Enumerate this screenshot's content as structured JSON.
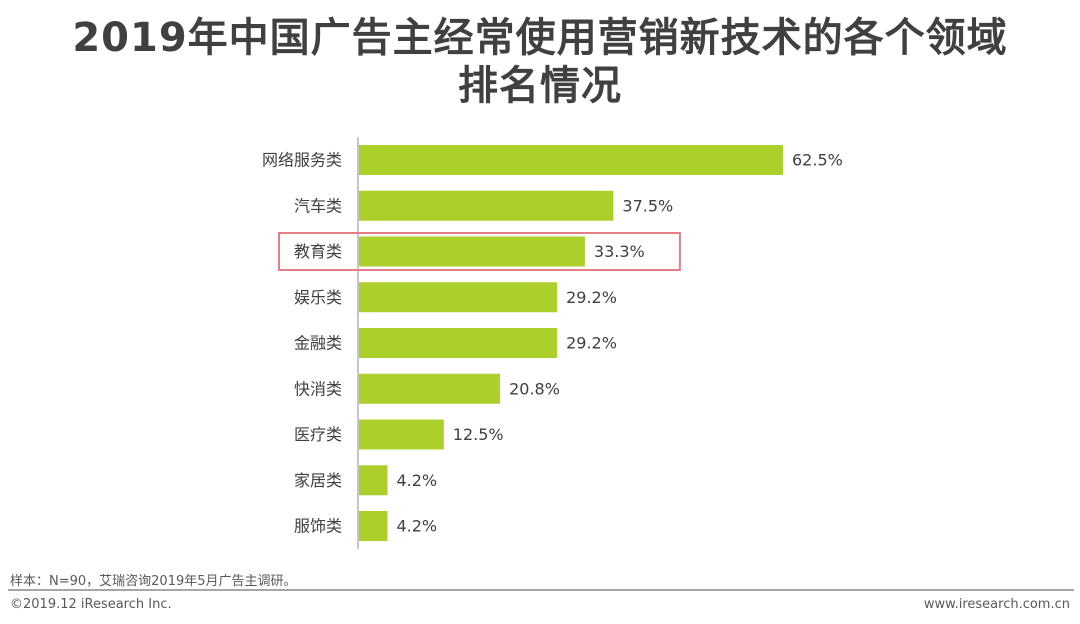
{
  "title": {
    "line1": "2019年中国广告主经常使用营销新技术的各个领域",
    "line2": "排名情况"
  },
  "chart_data": {
    "type": "bar",
    "orientation": "horizontal",
    "categories": [
      "网络服务类",
      "汽车类",
      "教育类",
      "娱乐类",
      "金融类",
      "快消类",
      "医疗类",
      "家居类",
      "服饰类"
    ],
    "values": [
      62.5,
      37.5,
      33.3,
      29.2,
      29.2,
      20.8,
      12.5,
      4.2,
      4.2
    ],
    "value_labels": [
      "62.5%",
      "37.5%",
      "33.3%",
      "29.2%",
      "29.2%",
      "20.8%",
      "12.5%",
      "4.2%",
      "4.2%"
    ],
    "highlighted_category": "教育类",
    "title": "2019年中国广告主经常使用营销新技术的各个领域排名情况",
    "xlabel": "",
    "ylabel": "",
    "xlim": [
      0,
      70
    ],
    "grid": false,
    "legend": "none",
    "bar_color": "#adcf2b",
    "highlight_color": "#e57f87",
    "axis_color": "#8c8c8c"
  },
  "footer": {
    "source_note": "样本：N=90，艾瑞咨询2019年5月广告主调研。",
    "copyright": "©2019.12 iResearch Inc.",
    "website": "www.iresearch.com.cn"
  }
}
